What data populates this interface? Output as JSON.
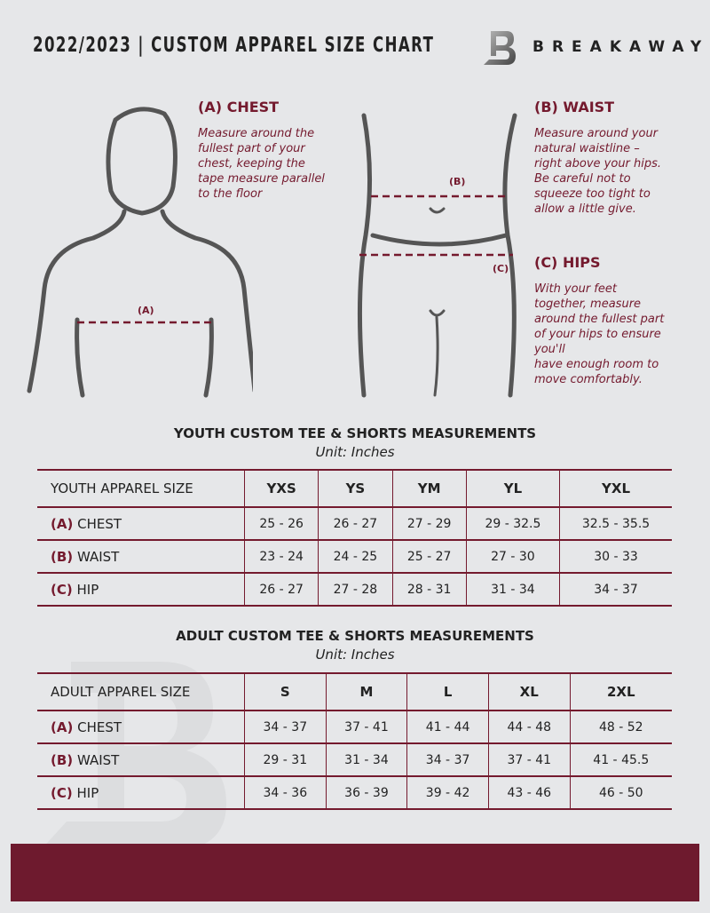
{
  "header": {
    "title": "2022/2023  |  CUSTOM APPAREL SIZE CHART",
    "brand": "BREAKAWAY"
  },
  "colors": {
    "accent": "#741a2e",
    "background": "#e6e7e9"
  },
  "measures": {
    "chest": {
      "title": "(A) CHEST",
      "text": [
        "Measure around the",
        "fullest part of your",
        "chest, keeping the",
        "tape measure parallel",
        "to the floor"
      ],
      "marker": "(A)"
    },
    "waist": {
      "title": "(B) WAIST",
      "text": [
        "Measure around your",
        "natural waistline –",
        "right above your hips.",
        "Be careful not to",
        "squeeze too tight to",
        "allow a little give."
      ],
      "marker": "(B)"
    },
    "hips": {
      "title": "(C) HIPS",
      "text": [
        "With your feet",
        "together, measure",
        "around the fullest part",
        "of your hips to ensure",
        "you'll",
        "have enough room to",
        "move comfortably."
      ],
      "marker": "(C)"
    }
  },
  "youth": {
    "title": "YOUTH CUSTOM TEE & SHORTS MEASUREMENTS",
    "unit": "Unit: Inches",
    "header": "YOUTH APPAREL SIZE",
    "sizes": [
      "YXS",
      "YS",
      "YM",
      "YL",
      "YXL"
    ],
    "rows": [
      {
        "letter": "(A)",
        "label": "CHEST",
        "values": [
          "25 - 26",
          "26 - 27",
          "27 - 29",
          "29 - 32.5",
          "32.5 - 35.5"
        ]
      },
      {
        "letter": "(B)",
        "label": "WAIST",
        "values": [
          "23 - 24",
          "24 - 25",
          "25 - 27",
          "27 - 30",
          "30 - 33"
        ]
      },
      {
        "letter": "(C)",
        "label": "HIP",
        "values": [
          "26 - 27",
          "27 - 28",
          "28 - 31",
          "31 - 34",
          "34 - 37"
        ]
      }
    ]
  },
  "adult": {
    "title": "ADULT CUSTOM TEE & SHORTS MEASUREMENTS",
    "unit": "Unit: Inches",
    "header": "ADULT APPAREL SIZE",
    "sizes": [
      "S",
      "M",
      "L",
      "XL",
      "2XL"
    ],
    "rows": [
      {
        "letter": "(A)",
        "label": "CHEST",
        "values": [
          "34 - 37",
          "37 - 41",
          "41 - 44",
          "44 - 48",
          "48 - 52"
        ]
      },
      {
        "letter": "(B)",
        "label": "WAIST",
        "values": [
          "29 - 31",
          "31 - 34",
          "34 - 37",
          "37 - 41",
          "41 - 45.5"
        ]
      },
      {
        "letter": "(C)",
        "label": "HIP",
        "values": [
          "34 - 36",
          "36 - 39",
          "39 - 42",
          "43 - 46",
          "46 - 50"
        ]
      }
    ]
  }
}
